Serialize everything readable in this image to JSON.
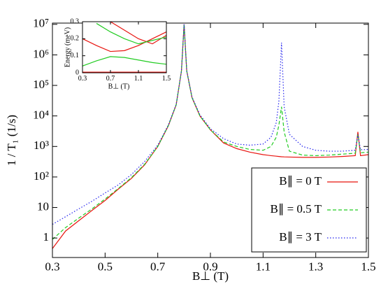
{
  "chart_data": [
    {
      "type": "line",
      "xlabel": "B⊥ (T)",
      "ylabel": "1 / T₁ (1/s)",
      "yscale": "log",
      "legend": "lower right",
      "xlim": [
        0.3,
        1.5
      ],
      "xticks": [
        0.3,
        0.5,
        0.7,
        0.9,
        1.1,
        1.3,
        1.5
      ],
      "ylim": [
        0.23,
        11000000
      ],
      "yticks": [
        1,
        10,
        {
          "value": 100,
          "label": "10²"
        },
        {
          "value": 1000,
          "label": "10³"
        },
        {
          "value": 10000,
          "label": "10⁴"
        },
        {
          "value": 100000,
          "label": "10⁵"
        },
        {
          "value": 1000000,
          "label": "10⁶"
        },
        {
          "value": 10000000,
          "label": "10⁷"
        }
      ],
      "x": [
        0.3,
        0.35,
        0.4,
        0.45,
        0.5,
        0.55,
        0.6,
        0.65,
        0.7,
        0.74,
        0.77,
        0.79,
        0.8,
        0.81,
        0.83,
        0.86,
        0.9,
        0.95,
        1.0,
        1.05,
        1.1,
        1.13,
        1.15,
        1.16,
        1.17,
        1.18,
        1.2,
        1.25,
        1.3,
        1.35,
        1.4,
        1.45,
        1.46,
        1.47,
        1.5
      ],
      "series": [
        {
          "name": "B∥ = 0 T",
          "color": "#e8140f",
          "style": "solid",
          "values": [
            0.45,
            1.7,
            3.7,
            8,
            17,
            40,
            90,
            250,
            1000,
            4700,
            23000,
            300000,
            10000000,
            300000,
            40000,
            10000,
            3500,
            1300,
            850,
            650,
            540,
            500,
            480,
            470,
            460,
            455,
            450,
            440,
            440,
            450,
            470,
            500,
            3000,
            500,
            540
          ]
        },
        {
          "name": "B∥ = 0.5 T",
          "color": "#22cc22",
          "style": "dashed",
          "values": [
            0.9,
            2.2,
            4.5,
            9,
            19,
            42,
            95,
            260,
            1000,
            4800,
            23000,
            300000,
            10000000,
            300000,
            40000,
            10000,
            3500,
            1400,
            1000,
            800,
            750,
            1000,
            2000,
            5000,
            20000,
            3000,
            700,
            520,
            500,
            520,
            560,
            600,
            2500,
            620,
            650
          ]
        },
        {
          "name": "B∥ = 3 T",
          "color": "#2222ee",
          "style": "dotted",
          "values": [
            2.8,
            5,
            9,
            16,
            30,
            55,
            120,
            320,
            1100,
            5000,
            24000,
            300000,
            10000000,
            300000,
            42000,
            11000,
            3800,
            1800,
            1200,
            1100,
            1200,
            2000,
            6000,
            30000,
            2500000,
            20000,
            2500,
            1000,
            750,
            700,
            700,
            750,
            2500,
            780,
            800
          ]
        }
      ]
    },
    {
      "type": "line",
      "xlabel": "B⊥ (T)",
      "ylabel": "Energy (meV)",
      "xlim": [
        0.3,
        1.5
      ],
      "xticks": [
        0.3,
        0.7,
        1.1,
        1.5
      ],
      "ylim": [
        0,
        0.3
      ],
      "yticks": [
        0,
        0.1,
        0.2,
        0.3
      ],
      "x": [
        0.3,
        0.5,
        0.7,
        0.9,
        1.1,
        1.3,
        1.5
      ],
      "series": [
        {
          "color": "#e8140f",
          "style": "solid",
          "linewidth": 3,
          "values": [
            0,
            0,
            0,
            0,
            0,
            0,
            0
          ]
        },
        {
          "color": "#e8140f",
          "style": "solid",
          "values": [
            0.2,
            0.16,
            0.125,
            0.13,
            0.16,
            0.2,
            0.24
          ]
        },
        {
          "color": "#e8140f",
          "style": "solid",
          "values": [
            null,
            null,
            0.3,
            0.25,
            0.2,
            0.17,
            0.22
          ]
        },
        {
          "color": "#22cc22",
          "style": "solid",
          "values": [
            0.04,
            0.07,
            0.095,
            0.09,
            0.075,
            0.06,
            0.05
          ]
        },
        {
          "color": "#22cc22",
          "style": "solid",
          "values": [
            null,
            0.29,
            0.24,
            0.2,
            0.17,
            0.19,
            0.21
          ]
        }
      ]
    }
  ]
}
